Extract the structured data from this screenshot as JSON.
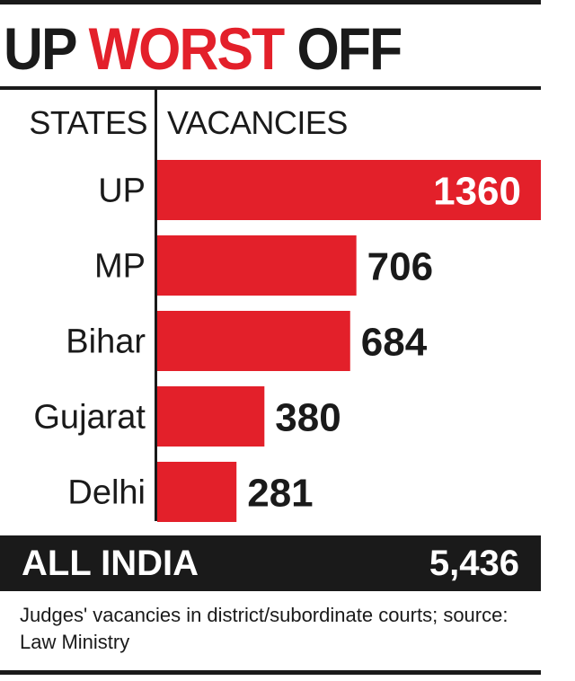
{
  "title": {
    "part1": "UP",
    "part2": "WORST",
    "part3": "OFF"
  },
  "headers": {
    "states": "STATES",
    "vacancies": "VACANCIES"
  },
  "colors": {
    "accent": "#e3202a",
    "dark": "#1a1a1a"
  },
  "chart_data": {
    "type": "bar",
    "orientation": "horizontal",
    "categories": [
      "UP",
      "MP",
      "Bihar",
      "Gujarat",
      "Delhi"
    ],
    "values": [
      1360,
      706,
      684,
      380,
      281
    ],
    "value_labels": [
      "1360",
      "706",
      "684",
      "380",
      "281"
    ],
    "xlim": [
      0,
      1360
    ],
    "grid": false,
    "legend": "none"
  },
  "total": {
    "label": "ALL INDIA",
    "value": "5,436"
  },
  "note": "Judges' vacancies in district/subordinate courts; source: Law Ministry"
}
